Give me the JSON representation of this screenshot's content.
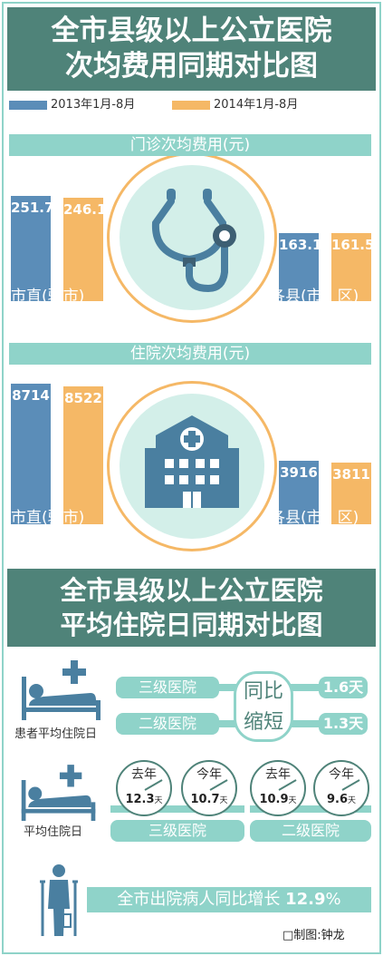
{
  "chart_data": [
    {
      "type": "bar",
      "title": "全市县级以上公立医院次均费用同期对比图",
      "legend": [
        "2013年1月-8月",
        "2014年1月-8月"
      ],
      "colors": [
        "#5b8db8",
        "#f5b866"
      ],
      "sections": [
        {
          "title": "门诊次均费用(元)",
          "groups": [
            {
              "label": "市直(驻市)",
              "values": [
                251.7,
                246.1
              ]
            },
            {
              "label": "各县(市、区)",
              "values": [
                163.1,
                161.5
              ]
            }
          ]
        },
        {
          "title": "住院次均费用(元)",
          "groups": [
            {
              "label": "市直(驻市)",
              "values": [
                8714,
                8522
              ]
            },
            {
              "label": "各县(市、区)",
              "values": [
                3916,
                3811
              ]
            }
          ]
        }
      ]
    },
    {
      "type": "table",
      "title": "全市县级以上公立医院平均住院日同期对比图",
      "patient_label": "患者平均住院日",
      "center_label": [
        "同比",
        "缩短"
      ],
      "rows": [
        {
          "label": "三级医院",
          "value": "1.6天"
        },
        {
          "label": "二级医院",
          "value": "1.3天"
        }
      ],
      "avg_label": "平均住院日",
      "clock_groups": [
        {
          "label": "三级医院",
          "clocks": [
            {
              "title": "去年",
              "value": "12.3",
              "unit": "天"
            },
            {
              "title": "今年",
              "value": "10.7",
              "unit": "天"
            }
          ]
        },
        {
          "label": "二级医院",
          "clocks": [
            {
              "title": "去年",
              "value": "10.9",
              "unit": "天"
            },
            {
              "title": "今年",
              "value": "9.6",
              "unit": "天"
            }
          ]
        }
      ],
      "footer": {
        "text": "全市出院病人同比增长",
        "value": "12.9",
        "unit": "%"
      }
    }
  ],
  "credit": "□制图:钟龙"
}
